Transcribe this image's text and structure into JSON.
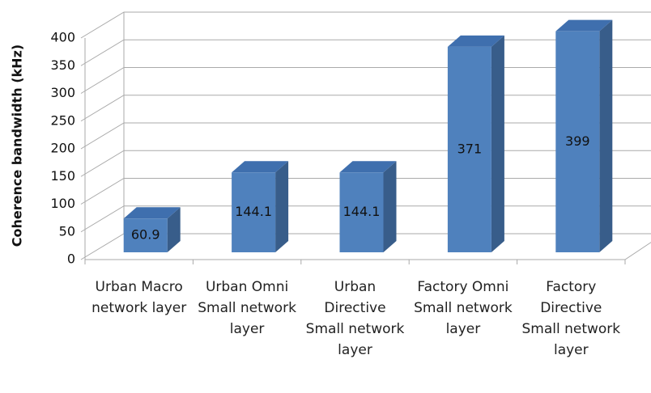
{
  "chart_data": {
    "type": "bar3d",
    "y_label": "Coherence bandwidth (kHz)",
    "categories": [
      "Urban Macro network layer",
      "Urban Omni Small network layer",
      "Urban Directive Small network layer",
      "Factory Omni Small network layer",
      "Factory Directive Small network layer"
    ],
    "values": [
      60.9,
      144.1,
      144.1,
      371,
      399
    ],
    "color": "#4f81bd",
    "ylim": [
      0,
      400
    ],
    "yticks": [
      0,
      50,
      100,
      150,
      200,
      250,
      300,
      350,
      400
    ],
    "grid": true
  }
}
